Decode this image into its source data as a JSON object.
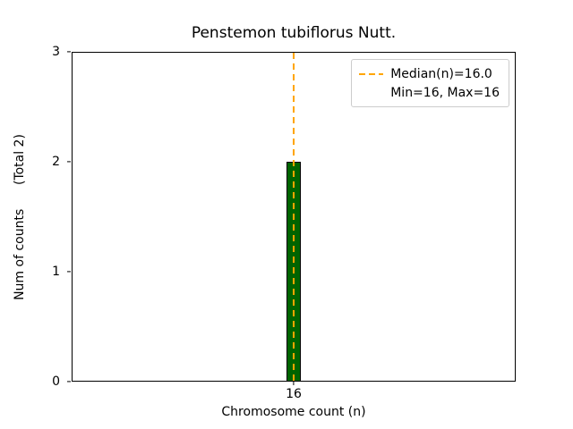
{
  "chart_data": {
    "type": "bar",
    "title": "Penstemon tubiflorus Nutt.",
    "xlabel": "Chromosome count (n)",
    "ylabel": "Num of counts      (Total 2)",
    "categories": [
      "16"
    ],
    "values": [
      2
    ],
    "total_counts": 2,
    "ylim": [
      0,
      3
    ],
    "yticks": [
      0,
      1,
      2,
      3
    ],
    "grid": false,
    "bar_color": "#006400",
    "bar_edge_color": "#000000",
    "median_line": {
      "x": "16",
      "value": 16.0,
      "color": "#FFA500",
      "style": "dashed"
    },
    "legend_position": "top-right",
    "legend": [
      {
        "sample": "dashed-orange-line",
        "label": "Median(n)=16.0"
      },
      {
        "sample": "none",
        "label": "Min=16, Max=16"
      }
    ]
  }
}
